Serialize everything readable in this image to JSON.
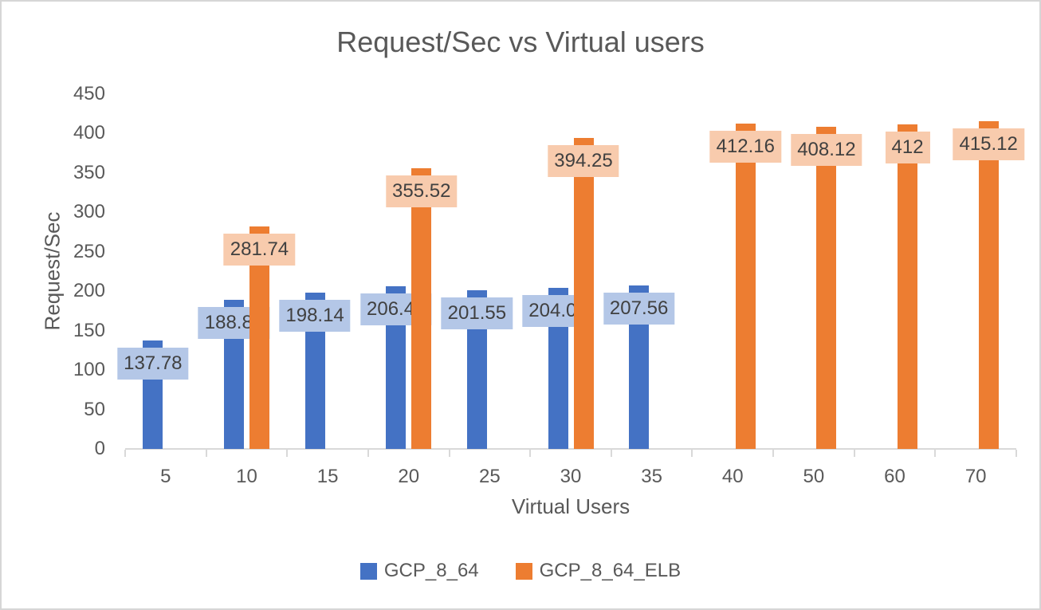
{
  "chart_data": {
    "type": "bar",
    "title": "Request/Sec vs Virtual users",
    "xlabel": "Virtual Users",
    "ylabel": "Request/Sec",
    "categories": [
      "5",
      "10",
      "15",
      "20",
      "25",
      "30",
      "35",
      "40",
      "50",
      "60",
      "70"
    ],
    "series": [
      {
        "name": "GCP_8_64",
        "color": "#4472C4",
        "label_bg": "#B4C7E7",
        "values": [
          137.78,
          188.84,
          198.14,
          206.45,
          201.55,
          204.03,
          207.56,
          null,
          null,
          null,
          null
        ]
      },
      {
        "name": "GCP_8_64_ELB",
        "color": "#ED7D31",
        "label_bg": "#F8CBAD",
        "values": [
          null,
          281.74,
          null,
          355.52,
          null,
          394.25,
          null,
          412.16,
          408.12,
          412,
          415.12
        ]
      }
    ],
    "ylim": [
      0,
      450
    ],
    "ytick_step": 50,
    "yticks": [
      0,
      50,
      100,
      150,
      200,
      250,
      300,
      350,
      400,
      450
    ],
    "grid": false,
    "legend_position": "bottom",
    "axis_color": "#D9D9D9",
    "text_color": "#595959",
    "data_label_text_color": "#404040",
    "background": "#FFFFFF"
  }
}
